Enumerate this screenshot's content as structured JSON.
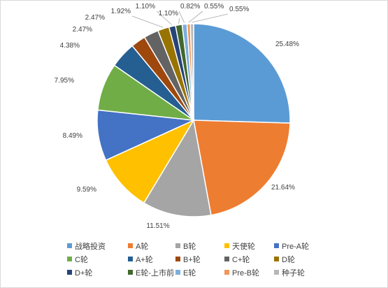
{
  "chart_data": {
    "type": "pie",
    "title": "",
    "start_angle_deg": 0,
    "direction": "clockwise",
    "slices": [
      {
        "label": "战略投资",
        "value": 25.48,
        "value_label": "25.48%",
        "color": "#5B9BD5"
      },
      {
        "label": "A轮",
        "value": 21.64,
        "value_label": "21.64%",
        "color": "#ED7D31"
      },
      {
        "label": "B轮",
        "value": 11.51,
        "value_label": "11.51%",
        "color": "#A5A5A5"
      },
      {
        "label": "天使轮",
        "value": 9.59,
        "value_label": "9.59%",
        "color": "#FFC000"
      },
      {
        "label": "Pre-A轮",
        "value": 8.49,
        "value_label": "8.49%",
        "color": "#4472C4"
      },
      {
        "label": "C轮",
        "value": 7.95,
        "value_label": "7.95%",
        "color": "#70AD47"
      },
      {
        "label": "A+轮",
        "value": 4.38,
        "value_label": "4.38%",
        "color": "#255E91"
      },
      {
        "label": "B+轮",
        "value": 2.47,
        "value_label": "2.47%",
        "color": "#9E480E"
      },
      {
        "label": "C+轮",
        "value": 2.47,
        "value_label": "2.47%",
        "color": "#636363"
      },
      {
        "label": "D轮",
        "value": 1.92,
        "value_label": "1.92%",
        "color": "#997300"
      },
      {
        "label": "D+轮",
        "value": 1.1,
        "value_label": "1.10%",
        "color": "#264478"
      },
      {
        "label": "E轮-上市前",
        "value": 1.1,
        "value_label": "1.10%",
        "color": "#43682B"
      },
      {
        "label": "E轮",
        "value": 0.82,
        "value_label": "0.82%",
        "color": "#7CAFDD"
      },
      {
        "label": "Pre-B轮",
        "value": 0.55,
        "value_label": "0.55%",
        "color": "#F1975A"
      },
      {
        "label": "种子轮",
        "value": 0.55,
        "value_label": "0.55%",
        "color": "#B7B7B7"
      }
    ],
    "legend_position": "bottom"
  }
}
